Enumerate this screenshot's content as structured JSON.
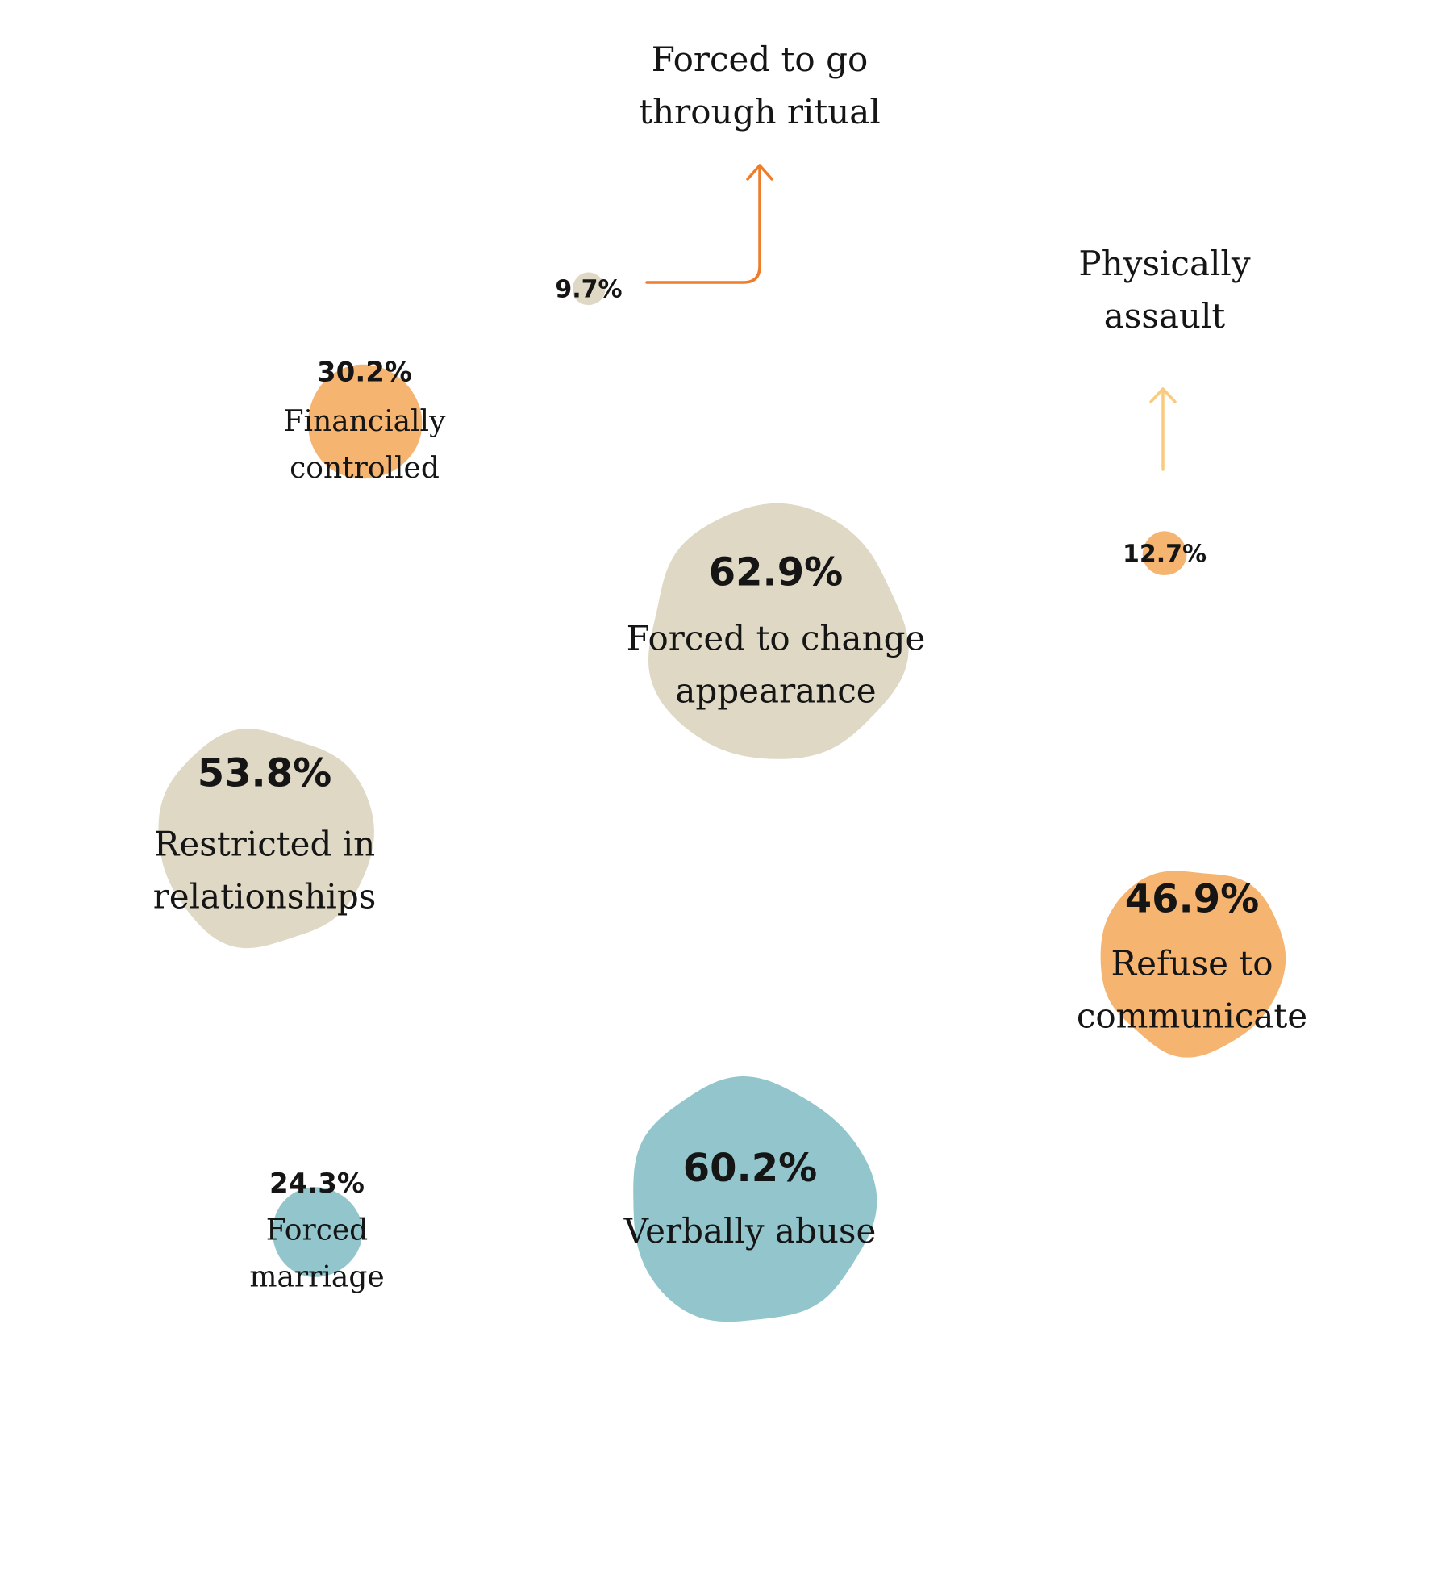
{
  "chart_data": {
    "type": "bubble",
    "colors": {
      "beige": "#DFD8C5",
      "orange": "#F6B471",
      "teal": "#93C6CC",
      "arrow_dark_orange": "#EE7D2B",
      "arrow_light_orange": "#F9CB7E",
      "text": "#151515"
    },
    "bubbles": [
      {
        "id": "forced-to-change-appearance",
        "value": 62.9,
        "value_label": "62.9%",
        "label_lines": [
          "Forced to change",
          "appearance"
        ],
        "color": "beige"
      },
      {
        "id": "verbally-abuse",
        "value": 60.2,
        "value_label": "60.2%",
        "label_lines": [
          "Verbally abuse"
        ],
        "color": "teal"
      },
      {
        "id": "restricted-in-relationships",
        "value": 53.8,
        "value_label": "53.8%",
        "label_lines": [
          "Restricted in",
          "relationships"
        ],
        "color": "beige"
      },
      {
        "id": "refuse-to-communicate",
        "value": 46.9,
        "value_label": "46.9%",
        "label_lines": [
          "Refuse to",
          "communicate"
        ],
        "color": "orange"
      },
      {
        "id": "financially-controlled",
        "value": 30.2,
        "value_label": "30.2%",
        "label_lines": [
          "Financially",
          "controlled"
        ],
        "color": "orange"
      },
      {
        "id": "forced-marriage",
        "value": 24.3,
        "value_label": "24.3%",
        "label_lines": [
          "Forced",
          "marriage"
        ],
        "color": "teal"
      },
      {
        "id": "physically-assault",
        "value": 12.7,
        "value_label": "12.7%",
        "label_lines": [
          "Physically",
          "assault"
        ],
        "color": "orange",
        "callout": true
      },
      {
        "id": "forced-to-go-through-ritual",
        "value": 9.7,
        "value_label": "9.7%",
        "label_lines": [
          "Forced to go",
          "through ritual"
        ],
        "color": "beige",
        "callout": true
      }
    ]
  }
}
